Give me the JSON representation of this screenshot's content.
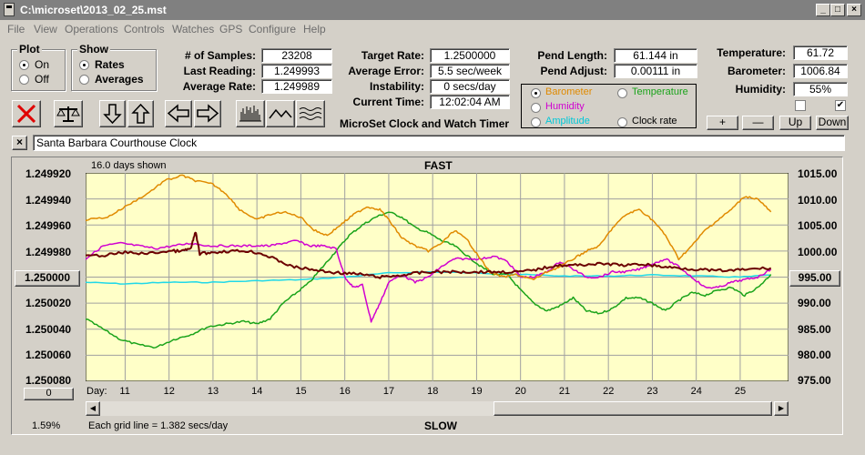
{
  "window": {
    "title": "C:\\microset\\2013_02_25.mst"
  },
  "menu": [
    "File",
    "View",
    "Operations",
    "Controls",
    "Watches",
    "GPS",
    "Configure",
    "Help"
  ],
  "plot_group": {
    "title": "Plot",
    "options": [
      "On",
      "Off"
    ],
    "selected": "On"
  },
  "show_group": {
    "title": "Show",
    "options": [
      "Rates",
      "Averages"
    ],
    "selected": "Rates"
  },
  "stats": {
    "samples_label": "# of Samples:",
    "samples": "23208",
    "last_reading_label": "Last Reading:",
    "last_reading": "1.249993",
    "average_rate_label": "Average Rate:",
    "average_rate": "1.249989"
  },
  "targets": {
    "target_rate_label": "Target Rate:",
    "target_rate": "1.2500000",
    "average_error_label": "Average Error:",
    "average_error": "5.5 sec/week",
    "instability_label": "Instability:",
    "instability": "0 secs/day",
    "current_time_label": "Current Time:",
    "current_time": "12:02:04 AM",
    "app_title": "MicroSet Clock and Watch Timer"
  },
  "pendulum": {
    "pend_length_label": "Pend Length:",
    "pend_length": "61.144 in",
    "pend_adjust_label": "Pend Adjust:",
    "pend_adjust": "0.00111 in"
  },
  "environment": {
    "temperature_label": "Temperature:",
    "temperature": "61.72",
    "barometer_label": "Barometer:",
    "barometer": "1006.84",
    "humidity_label": "Humidity:",
    "humidity": "55%"
  },
  "sensor_select": {
    "selected": "Barometer",
    "options": [
      {
        "label": "Barometer",
        "color": "#e08a00"
      },
      {
        "label": "Temperature",
        "color": "#1aa31a"
      },
      {
        "label": "Humidity",
        "color": "#d000d0"
      },
      {
        "label": "Amplitude",
        "color": "#00c8d8"
      },
      {
        "label": "Clock rate",
        "color": "#000000"
      }
    ]
  },
  "scale_buttons": {
    "plus": "+",
    "minus": "—",
    "up": "Up",
    "down": "Down"
  },
  "watch_name": "Santa Barbara Courthouse Clock",
  "chart_header": {
    "days_shown": "16.0 days shown",
    "fast": "FAST",
    "slow": "SLOW",
    "grid_note": "Each grid line = 1.382 secs/day",
    "percent": "1.59%",
    "scroll_value": "0",
    "day_label": "Day:",
    "center_left": "1.250000",
    "center_right": "995.00"
  },
  "colors": {
    "plot_bg": "#ffffc8",
    "rate": "#6b0000",
    "barometer": "#e08a00",
    "temperature": "#1aa31a",
    "humidity": "#d000d0",
    "amplitude": "#20d8e8"
  },
  "chart_data": {
    "type": "line",
    "x_label": "Day:",
    "x_ticks": [
      "11",
      "12",
      "13",
      "14",
      "15",
      "16",
      "17",
      "18",
      "19",
      "20",
      "21",
      "22",
      "23",
      "24",
      "25"
    ],
    "xlim": [
      10.1,
      26.1
    ],
    "y_left_ticks": [
      "1.249920",
      "1.249940",
      "1.249960",
      "1.249980",
      "1.250000",
      "1.250020",
      "1.250040",
      "1.250060",
      "1.250080"
    ],
    "y_left_lim": [
      1.24992,
      1.25008
    ],
    "y_right_ticks": [
      "1015.00",
      "1010.00",
      "1005.00",
      "1000.00",
      "995.00",
      "990.00",
      "985.00",
      "980.00",
      "975.00"
    ],
    "y_right_lim": [
      975,
      1015
    ],
    "series": [
      {
        "name": "Barometer",
        "axis": "right",
        "x": [
          10.1,
          10.6,
          11.0,
          11.5,
          11.9,
          12.3,
          12.6,
          13.0,
          13.3,
          13.6,
          14.0,
          14.3,
          14.6,
          15.0,
          15.3,
          15.6,
          15.9,
          16.2,
          16.5,
          16.8,
          17.0,
          17.3,
          17.6,
          17.9,
          18.2,
          18.5,
          18.8,
          19.0,
          19.3,
          19.6,
          19.9,
          20.3,
          20.6,
          20.9,
          21.2,
          21.5,
          21.8,
          22.1,
          22.4,
          22.7,
          23.0,
          23.3,
          23.6,
          23.9,
          24.2,
          24.5,
          24.8,
          25.1,
          25.4,
          25.7
        ],
        "y": [
          1006,
          1006.5,
          1008.5,
          1011,
          1013.5,
          1014.5,
          1013.5,
          1012.8,
          1011,
          1008,
          1006,
          1007,
          1007.5,
          1006.5,
          1004,
          1003,
          1005,
          1007,
          1008.5,
          1008,
          1006,
          1002.5,
          1001,
          1000,
          1001.5,
          1004,
          1002,
          999.5,
          996,
          995,
          995.5,
          994.5,
          996,
          997,
          998.5,
          1000,
          1001,
          1004.5,
          1007,
          1008,
          1006,
          1003,
          998.5,
          1001,
          1004,
          1006,
          1008,
          1010.5,
          1010,
          1007.5
        ]
      },
      {
        "name": "Temperature",
        "axis": "right",
        "x": [
          10.1,
          10.5,
          10.9,
          11.3,
          11.7,
          12.1,
          12.5,
          12.9,
          13.3,
          13.7,
          14.0,
          14.3,
          14.6,
          14.9,
          15.2,
          15.5,
          15.8,
          16.1,
          16.4,
          16.7,
          17.0,
          17.3,
          17.6,
          17.9,
          18.2,
          18.5,
          18.8,
          19.1,
          19.4,
          19.7,
          20.0,
          20.3,
          20.6,
          20.9,
          21.2,
          21.5,
          21.8,
          22.1,
          22.4,
          22.7,
          23.0,
          23.3,
          23.6,
          23.9,
          24.2,
          24.5,
          24.8,
          25.1,
          25.4,
          25.7
        ],
        "y": [
          987,
          985,
          983,
          982,
          981.5,
          983,
          984,
          985.5,
          986,
          986.5,
          986,
          987,
          990,
          992,
          994,
          997,
          1000,
          1003,
          1005,
          1006.5,
          1007.5,
          1006.5,
          1004.5,
          1003.5,
          1002,
          1001,
          999,
          997,
          995.5,
          995.5,
          992.5,
          990,
          988.5,
          989.5,
          991,
          988.5,
          988,
          989,
          991,
          991,
          990,
          988.5,
          990.5,
          992,
          991.5,
          992.5,
          993,
          991.5,
          993,
          995.5
        ]
      },
      {
        "name": "Humidity",
        "axis": "right",
        "x": [
          10.1,
          10.5,
          10.9,
          11.3,
          11.7,
          12.1,
          12.5,
          12.9,
          13.3,
          13.7,
          14.0,
          14.3,
          14.6,
          14.9,
          15.2,
          15.5,
          15.8,
          16.0,
          16.2,
          16.4,
          16.6,
          16.8,
          17.0,
          17.3,
          17.6,
          17.9,
          18.2,
          18.5,
          18.8,
          19.1,
          19.4,
          19.7,
          20.0,
          20.3,
          20.6,
          20.9,
          21.2,
          21.5,
          21.8,
          22.1,
          22.4,
          22.7,
          23.0,
          23.3,
          23.6,
          23.9,
          24.2,
          24.5,
          24.8,
          25.1,
          25.4,
          25.7
        ],
        "y": [
          998.5,
          1001,
          1001.5,
          1001,
          1000.5,
          1001,
          1001.5,
          1001,
          1001,
          1001,
          1001,
          1001,
          1001.5,
          1002,
          1001,
          1001,
          1000.5,
          995,
          993,
          993.5,
          986.5,
          990,
          994,
          995.5,
          994,
          995,
          997,
          998.5,
          998.5,
          998.5,
          999,
          998,
          995,
          995,
          996,
          998,
          996.5,
          995,
          995,
          996,
          996,
          996.5,
          997.5,
          998.5,
          997,
          995,
          993,
          993,
          994,
          994.5,
          995,
          996.5
        ]
      },
      {
        "name": "Amplitude",
        "axis": "right",
        "x": [
          10.1,
          11,
          12,
          13,
          14,
          15,
          16,
          17,
          18,
          19,
          20,
          21,
          22,
          23,
          24,
          25,
          25.7
        ],
        "y": [
          994,
          993.7,
          994,
          994,
          994.3,
          994.5,
          995,
          995.8,
          996,
          995.8,
          995.5,
          995.2,
          995.2,
          995.4,
          995.2,
          995,
          995.4
        ]
      },
      {
        "name": "Clock rate",
        "axis": "left",
        "x": [
          10.1,
          10.6,
          11.0,
          11.5,
          12.0,
          12.3,
          12.5,
          12.6,
          12.7,
          13.0,
          13.4,
          13.8,
          14.1,
          14.4,
          14.8,
          15.2,
          15.6,
          16.0,
          16.4,
          16.8,
          17.2,
          17.6,
          18.0,
          18.4,
          18.8,
          19.2,
          19.6,
          20.0,
          20.4,
          20.8,
          21.2,
          21.6,
          22.0,
          22.4,
          22.8,
          23.2,
          23.6,
          24.0,
          24.4,
          24.8,
          25.2,
          25.7
        ],
        "y": [
          1.249984,
          1.249983,
          1.249981,
          1.249982,
          1.24998,
          1.24998,
          1.249978,
          1.249965,
          1.249982,
          1.249981,
          1.24998,
          1.24998,
          1.249982,
          1.249986,
          1.249992,
          1.249994,
          1.249996,
          1.249997,
          1.249998,
          1.25,
          1.249999,
          1.249997,
          1.249996,
          1.249996,
          1.249996,
          1.249996,
          1.249996,
          1.249996,
          1.249994,
          1.249991,
          1.249991,
          1.24999,
          1.24999,
          1.249991,
          1.24999,
          1.249992,
          1.249993,
          1.249994,
          1.249995,
          1.249995,
          1.249994,
          1.249993
        ]
      }
    ]
  }
}
